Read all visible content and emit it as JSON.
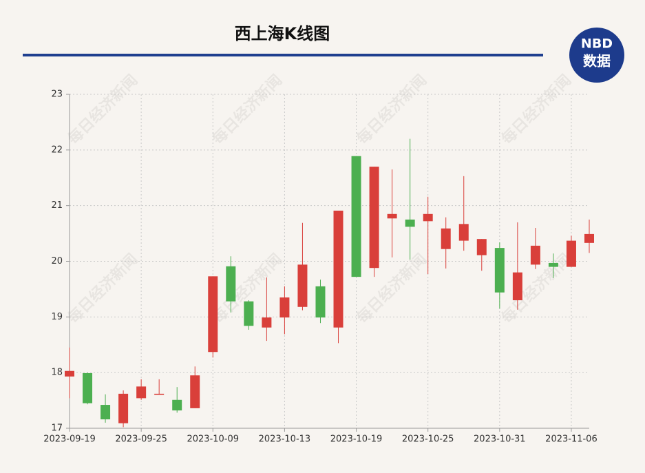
{
  "chart_data": {
    "type": "candlestick",
    "title": "西上海K线图",
    "logo": {
      "line1": "NBD",
      "line2": "数据"
    },
    "watermark": "每日经济新闻",
    "categories": [
      "2023-09-19",
      null,
      null,
      null,
      "2023-09-25",
      null,
      null,
      null,
      "2023-10-09",
      null,
      null,
      null,
      "2023-10-13",
      null,
      null,
      null,
      "2023-10-19",
      null,
      null,
      null,
      "2023-10-25",
      null,
      null,
      null,
      "2023-10-31",
      null,
      null,
      null,
      "2023-11-06",
      null
    ],
    "open": [
      17.93,
      17.99,
      17.42,
      17.09,
      17.54,
      17.6,
      17.51,
      17.36,
      18.37,
      19.91,
      19.28,
      18.81,
      18.99,
      19.18,
      19.55,
      18.81,
      21.89,
      19.88,
      20.77,
      20.75,
      20.72,
      20.22,
      20.37,
      20.11,
      20.24,
      19.3,
      19.94,
      19.97,
      19.9,
      20.33
    ],
    "close": [
      18.03,
      17.45,
      17.16,
      17.62,
      17.75,
      17.62,
      17.32,
      17.95,
      19.73,
      19.28,
      18.84,
      18.99,
      19.35,
      19.94,
      18.99,
      20.91,
      19.72,
      21.7,
      20.85,
      20.62,
      20.85,
      20.59,
      20.67,
      20.4,
      19.44,
      19.8,
      20.28,
      19.9,
      20.37,
      20.49
    ],
    "high": [
      18.45,
      18.0,
      17.61,
      17.68,
      17.88,
      17.88,
      17.74,
      18.11,
      19.73,
      20.09,
      19.3,
      19.71,
      19.55,
      20.69,
      19.67,
      20.91,
      21.89,
      21.7,
      21.65,
      22.2,
      21.16,
      20.79,
      21.53,
      20.4,
      20.34,
      20.7,
      20.6,
      20.14,
      20.46,
      20.75
    ],
    "low": [
      17.54,
      17.43,
      17.1,
      17.02,
      17.51,
      17.6,
      17.28,
      17.36,
      18.27,
      19.08,
      18.77,
      18.57,
      18.69,
      19.12,
      18.89,
      18.53,
      19.72,
      19.72,
      20.07,
      20.03,
      19.77,
      19.87,
      20.19,
      19.83,
      19.15,
      19.13,
      19.86,
      19.7,
      19.9,
      20.15
    ],
    "up_color": "#d93f3a",
    "down_color": "#4caf50",
    "ylim": [
      17,
      23
    ],
    "yticks": [
      17,
      18,
      19,
      20,
      21,
      22,
      23
    ],
    "grid": true
  }
}
